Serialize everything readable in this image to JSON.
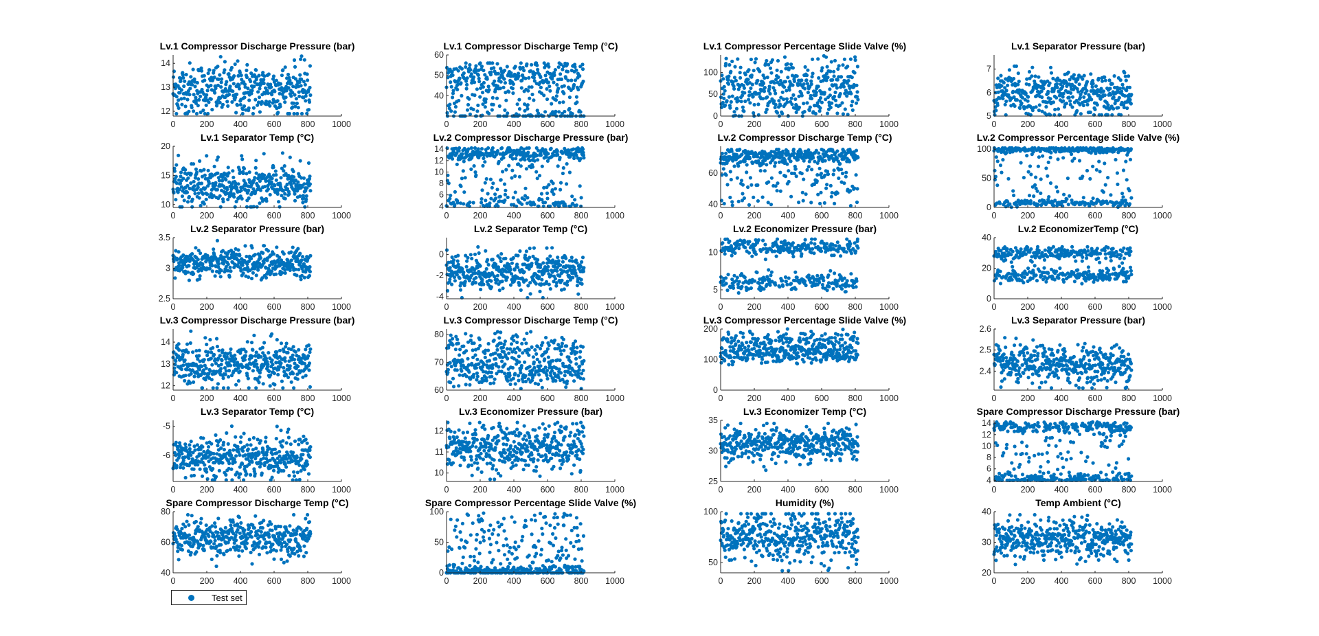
{
  "figure": {
    "marker_color": "#0072BD",
    "legend": {
      "label": "Test set",
      "placement": "bottom-left"
    }
  },
  "chart_data": [
    {
      "type": "scatter",
      "title": "Lv.1 Compressor Discharge Pressure (bar)",
      "x_range": [
        0,
        816
      ],
      "xlim": [
        0,
        1000
      ],
      "xticks": [
        0,
        200,
        400,
        600,
        800,
        1000
      ],
      "ylim": [
        11.8,
        14.35
      ],
      "yticks": [
        12,
        13,
        14
      ],
      "yticklabels": [
        "12",
        "13",
        "14"
      ],
      "y_center": 12.9,
      "y_spread": 0.55,
      "y_min": 11.9,
      "y_max": 14.3
    },
    {
      "type": "scatter",
      "title": "Lv.1 Compressor Discharge Temp (°C)",
      "x_range": [
        0,
        816
      ],
      "xlim": [
        0,
        1000
      ],
      "xticks": [
        0,
        200,
        400,
        600,
        800,
        1000
      ],
      "ylim": [
        30,
        60
      ],
      "yticks": [
        40,
        50,
        60
      ],
      "yticklabels": [
        "40",
        "50",
        "60"
      ],
      "y_levels": [
        50,
        31,
        42
      ],
      "y_weights": [
        0.55,
        0.25,
        0.2
      ],
      "y_spread": 3.5,
      "y_min": 30,
      "y_max": 56
    },
    {
      "type": "scatter",
      "title": "Lv.1 Compressor Percentage Slide Valve (%)",
      "x_range": [
        0,
        816
      ],
      "xlim": [
        0,
        1000
      ],
      "xticks": [
        0,
        200,
        400,
        600,
        800,
        1000
      ],
      "ylim": [
        0,
        140
      ],
      "yticks": [
        0,
        50,
        100
      ],
      "yticklabels": [
        "0",
        "50",
        "100"
      ],
      "y_levels": [
        75,
        30,
        110
      ],
      "y_weights": [
        0.45,
        0.4,
        0.15
      ],
      "y_spread": 18,
      "y_min": 0,
      "y_max": 138
    },
    {
      "type": "scatter",
      "title": "Lv.1 Separator Pressure (bar)",
      "x_range": [
        0,
        816
      ],
      "xlim": [
        0,
        1000
      ],
      "xticks": [
        0,
        200,
        400,
        600,
        800,
        1000
      ],
      "ylim": [
        5,
        7.6
      ],
      "yticks": [
        5,
        6,
        7
      ],
      "yticklabels": [
        "5",
        "6",
        "7"
      ],
      "y_levels": [
        5.85,
        6.1
      ],
      "y_weights": [
        0.6,
        0.4
      ],
      "y_spread": 0.45,
      "y_min": 5.05,
      "y_max": 7.4
    },
    {
      "type": "scatter",
      "title": "Lv.1 Separator Temp (°C)",
      "x_range": [
        0,
        816
      ],
      "xlim": [
        0,
        1000
      ],
      "xticks": [
        0,
        200,
        400,
        600,
        800,
        1000
      ],
      "ylim": [
        9.5,
        20
      ],
      "yticks": [
        10,
        15,
        20
      ],
      "yticklabels": [
        "10",
        "15",
        "20"
      ],
      "y_center": 13.2,
      "y_spread": 1.9,
      "y_min": 9.6,
      "y_max": 19.5
    },
    {
      "type": "scatter",
      "title": "Lv.2 Compressor Discharge Pressure (bar)",
      "x_range": [
        0,
        816
      ],
      "xlim": [
        0,
        1000
      ],
      "xticks": [
        0,
        200,
        400,
        600,
        800,
        1000
      ],
      "ylim": [
        3.8,
        14.5
      ],
      "yticks": [
        4,
        6,
        8,
        10,
        12,
        14
      ],
      "yticklabels": [
        "4",
        "6",
        "8",
        "10",
        "12",
        "14"
      ],
      "y_levels": [
        13.2,
        4.4,
        9
      ],
      "y_weights": [
        0.5,
        0.25,
        0.25
      ],
      "y_spread": 0.6,
      "y_uniform_for_last": true,
      "y_min": 4,
      "y_max": 14.2
    },
    {
      "type": "scatter",
      "title": "Lv.2 Compressor Discharge Temp (°C)",
      "x_range": [
        0,
        816
      ],
      "xlim": [
        0,
        1000
      ],
      "xticks": [
        0,
        200,
        400,
        600,
        800,
        1000
      ],
      "ylim": [
        38,
        77
      ],
      "yticks": [
        40,
        60
      ],
      "yticklabels": [
        "40",
        "60"
      ],
      "y_levels": [
        71,
        55
      ],
      "y_weights": [
        0.6,
        0.4
      ],
      "y_spread": 2.5,
      "y_uniform_for_last": true,
      "y_min": 39,
      "y_max": 75
    },
    {
      "type": "scatter",
      "title": "Lv.2 Compressor Percentage Slide Valve (%)",
      "x_range": [
        0,
        816
      ],
      "xlim": [
        0,
        1000
      ],
      "xticks": [
        0,
        200,
        400,
        600,
        800,
        1000
      ],
      "ylim": [
        0,
        105
      ],
      "yticks": [
        0,
        50,
        100
      ],
      "yticklabels": [
        "0",
        "50",
        "100"
      ],
      "y_levels": [
        99,
        8,
        50
      ],
      "y_weights": [
        0.45,
        0.3,
        0.25
      ],
      "y_spread": 2.5,
      "y_uniform_for_last": true,
      "y_min": 0,
      "y_max": 102
    },
    {
      "type": "scatter",
      "title": "Lv.2 Separator Pressure (bar)",
      "x_range": [
        0,
        816
      ],
      "xlim": [
        0,
        1000
      ],
      "xticks": [
        0,
        200,
        400,
        600,
        800,
        1000
      ],
      "ylim": [
        2.5,
        3.5
      ],
      "yticks": [
        2.5,
        3,
        3.5
      ],
      "yticklabels": [
        "2.5",
        "3",
        "3.5"
      ],
      "y_center": 3.08,
      "y_spread": 0.12,
      "y_min": 2.65,
      "y_max": 3.45
    },
    {
      "type": "scatter",
      "title": "Lv.2 Separator Temp (°C)",
      "x_range": [
        0,
        816
      ],
      "xlim": [
        0,
        1000
      ],
      "xticks": [
        0,
        200,
        400,
        600,
        800,
        1000
      ],
      "ylim": [
        -4.2,
        1.6
      ],
      "yticks": [
        -4,
        -2,
        0
      ],
      "yticklabels": [
        "-4",
        "-2",
        "0"
      ],
      "y_center": -1.6,
      "y_spread": 0.9,
      "y_min": -4.1,
      "y_max": 1.3
    },
    {
      "type": "scatter",
      "title": "Lv.2 Economizer Pressure (bar)",
      "x_range": [
        0,
        816
      ],
      "xlim": [
        0,
        1000
      ],
      "xticks": [
        0,
        200,
        400,
        600,
        800,
        1000
      ],
      "ylim": [
        3.8,
        12
      ],
      "yticks": [
        5,
        10
      ],
      "yticklabels": [
        "5",
        "10"
      ],
      "y_levels": [
        10.8,
        6
      ],
      "y_weights": [
        0.5,
        0.5
      ],
      "y_spread": 0.6,
      "y_min": 4,
      "y_max": 11.8
    },
    {
      "type": "scatter",
      "title": "Lv.2 EconomizerTemp (°C)",
      "x_range": [
        0,
        816
      ],
      "xlim": [
        0,
        1000
      ],
      "xticks": [
        0,
        200,
        400,
        600,
        800,
        1000
      ],
      "ylim": [
        0,
        40
      ],
      "yticks": [
        0,
        20,
        40
      ],
      "yticklabels": [
        "0",
        "20",
        "40"
      ],
      "y_levels": [
        30,
        15
      ],
      "y_weights": [
        0.5,
        0.5
      ],
      "y_spread": 2.2,
      "y_min": 1,
      "y_max": 34
    },
    {
      "type": "scatter",
      "title": "Lv.3 Compressor Discharge Pressure (bar)",
      "x_range": [
        0,
        816
      ],
      "xlim": [
        0,
        1000
      ],
      "xticks": [
        0,
        200,
        400,
        600,
        800,
        1000
      ],
      "ylim": [
        11.8,
        14.6
      ],
      "yticks": [
        12,
        13,
        14
      ],
      "yticklabels": [
        "12",
        "13",
        "14"
      ],
      "y_center": 13,
      "y_spread": 0.5,
      "y_min": 11.9,
      "y_max": 14.5
    },
    {
      "type": "scatter",
      "title": "Lv.3 Compressor Discharge Temp (°C)",
      "x_range": [
        0,
        816
      ],
      "xlim": [
        0,
        1000
      ],
      "xticks": [
        0,
        200,
        400,
        600,
        800,
        1000
      ],
      "ylim": [
        60,
        82
      ],
      "yticks": [
        60,
        70,
        80
      ],
      "yticklabels": [
        "60",
        "70",
        "80"
      ],
      "y_levels": [
        67,
        75
      ],
      "y_weights": [
        0.6,
        0.4
      ],
      "y_spread": 2.8,
      "y_min": 60.5,
      "y_max": 81
    },
    {
      "type": "scatter",
      "title": "Lv.3 Compressor Percentage Slide Valve (%)",
      "x_range": [
        0,
        816
      ],
      "xlim": [
        0,
        1000
      ],
      "xticks": [
        0,
        200,
        400,
        600,
        800,
        1000
      ],
      "ylim": [
        0,
        200
      ],
      "yticks": [
        0,
        100,
        200
      ],
      "yticklabels": [
        "0",
        "100",
        "200"
      ],
      "y_levels": [
        118,
        160
      ],
      "y_weights": [
        0.6,
        0.4
      ],
      "y_spread": 16,
      "y_min": 40,
      "y_max": 200
    },
    {
      "type": "scatter",
      "title": "Lv.3 Separator Pressure (bar)",
      "x_range": [
        0,
        816
      ],
      "xlim": [
        0,
        1000
      ],
      "xticks": [
        0,
        200,
        400,
        600,
        800,
        1000
      ],
      "ylim": [
        2.31,
        2.6
      ],
      "yticks": [
        2.4,
        2.5,
        2.6
      ],
      "yticklabels": [
        "2.4",
        "2.5",
        "2.6"
      ],
      "y_center": 2.43,
      "y_spread": 0.045,
      "y_min": 2.32,
      "y_max": 2.56
    },
    {
      "type": "scatter",
      "title": "Lv.3 Separator Temp (°C)",
      "x_range": [
        0,
        816
      ],
      "xlim": [
        0,
        1000
      ],
      "xticks": [
        0,
        200,
        400,
        600,
        800,
        1000
      ],
      "ylim": [
        -6.9,
        -4.8
      ],
      "yticks": [
        -6,
        -5
      ],
      "yticklabels": [
        "-6",
        "-5"
      ],
      "y_center": -6.05,
      "y_spread": 0.38,
      "y_min": -6.85,
      "y_max": -5
    },
    {
      "type": "scatter",
      "title": "Lv.3 Economizer Pressure (bar)",
      "x_range": [
        0,
        816
      ],
      "xlim": [
        0,
        1000
      ],
      "xticks": [
        0,
        200,
        400,
        600,
        800,
        1000
      ],
      "ylim": [
        9.6,
        12.5
      ],
      "yticks": [
        10,
        11,
        12
      ],
      "yticklabels": [
        "10",
        "11",
        "12"
      ],
      "y_center": 11.2,
      "y_spread": 0.55,
      "y_min": 9.7,
      "y_max": 12.4
    },
    {
      "type": "scatter",
      "title": "Lv.3 Economizer Temp (°C)",
      "x_range": [
        0,
        816
      ],
      "xlim": [
        0,
        1000
      ],
      "xticks": [
        0,
        200,
        400,
        600,
        800,
        1000
      ],
      "ylim": [
        25,
        35
      ],
      "yticks": [
        25,
        30,
        35
      ],
      "yticklabels": [
        "25",
        "30",
        "35"
      ],
      "y_center": 31,
      "y_spread": 1.4,
      "y_min": 26,
      "y_max": 34.5
    },
    {
      "type": "scatter",
      "title": "Spare Compressor Discharge Pressure (bar)",
      "x_range": [
        0,
        816
      ],
      "xlim": [
        0,
        1000
      ],
      "xticks": [
        0,
        200,
        400,
        600,
        800,
        1000
      ],
      "ylim": [
        3.8,
        14.5
      ],
      "yticks": [
        4,
        6,
        8,
        10,
        12,
        14
      ],
      "yticklabels": [
        "4",
        "6",
        "8",
        "10",
        "12",
        "14"
      ],
      "y_levels": [
        13.3,
        4.2,
        9
      ],
      "y_weights": [
        0.4,
        0.35,
        0.25
      ],
      "y_spread": 0.5,
      "y_uniform_for_last": true,
      "y_min": 4,
      "y_max": 14.2
    },
    {
      "type": "scatter",
      "title": "Spare Compressor Discharge Temp (°C)",
      "x_range": [
        0,
        816
      ],
      "xlim": [
        0,
        1000
      ],
      "xticks": [
        0,
        200,
        400,
        600,
        800,
        1000
      ],
      "ylim": [
        40,
        80
      ],
      "yticks": [
        40,
        60,
        80
      ],
      "yticklabels": [
        "40",
        "60",
        "80"
      ],
      "y_center": 63,
      "y_spread": 6,
      "y_min": 41,
      "y_max": 78
    },
    {
      "type": "scatter",
      "title": "Spare Compressor Percentage Slide Valve (%)",
      "x_range": [
        0,
        816
      ],
      "xlim": [
        0,
        1000
      ],
      "xticks": [
        0,
        200,
        400,
        600,
        800,
        1000
      ],
      "ylim": [
        0,
        100
      ],
      "yticks": [
        0,
        50,
        100
      ],
      "yticklabels": [
        "0",
        "50",
        "100"
      ],
      "y_levels": [
        2,
        45
      ],
      "y_weights": [
        0.55,
        0.45
      ],
      "y_spread": 4,
      "y_uniform_for_last": true,
      "y_min": 0,
      "y_max": 98
    },
    {
      "type": "scatter",
      "title": "Humidity (%)",
      "x_range": [
        0,
        816
      ],
      "xlim": [
        0,
        1000
      ],
      "xticks": [
        0,
        200,
        400,
        600,
        800,
        1000
      ],
      "ylim": [
        40,
        100
      ],
      "yticks": [
        50,
        100
      ],
      "yticklabels": [
        "50",
        "100"
      ],
      "y_center": 75,
      "y_spread": 12,
      "y_min": 42,
      "y_max": 98
    },
    {
      "type": "scatter",
      "title": "Temp Ambient (°C)",
      "x_range": [
        0,
        816
      ],
      "xlim": [
        0,
        1000
      ],
      "xticks": [
        0,
        200,
        400,
        600,
        800,
        1000
      ],
      "ylim": [
        20,
        40
      ],
      "yticks": [
        20,
        30,
        40
      ],
      "yticklabels": [
        "20",
        "30",
        "40"
      ],
      "y_center": 31,
      "y_spread": 3.2,
      "y_min": 22,
      "y_max": 39
    }
  ]
}
